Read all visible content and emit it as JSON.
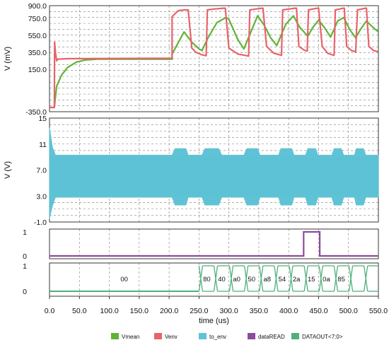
{
  "chart_data": [
    {
      "type": "line",
      "panel": "analog-voltage",
      "ylabel": "V (mV)",
      "ylim": [
        -350,
        900
      ],
      "yticks": [
        "900.0",
        "750.0",
        "550.0",
        "350.0",
        "150.0",
        "-350.0"
      ],
      "series": [
        {
          "name": "Vmean",
          "color": "#5fb336",
          "points": [
            [
              0,
              -300
            ],
            [
              8,
              -300
            ],
            [
              12,
              -50
            ],
            [
              20,
              80
            ],
            [
              30,
              170
            ],
            [
              45,
              235
            ],
            [
              60,
              260
            ],
            [
              80,
              270
            ],
            [
              205,
              270
            ],
            [
              205,
              330
            ],
            [
              215,
              460
            ],
            [
              225,
              590
            ],
            [
              238,
              470
            ],
            [
              250,
              390
            ],
            [
              255,
              370
            ],
            [
              265,
              520
            ],
            [
              280,
              700
            ],
            [
              295,
              760
            ],
            [
              300,
              740
            ],
            [
              315,
              500
            ],
            [
              325,
              390
            ],
            [
              335,
              560
            ],
            [
              348,
              780
            ],
            [
              358,
              680
            ],
            [
              370,
              520
            ],
            [
              380,
              430
            ],
            [
              395,
              680
            ],
            [
              408,
              780
            ],
            [
              418,
              650
            ],
            [
              432,
              540
            ],
            [
              440,
              640
            ],
            [
              450,
              730
            ],
            [
              460,
              640
            ],
            [
              470,
              530
            ],
            [
              482,
              720
            ],
            [
              492,
              760
            ],
            [
              502,
              620
            ],
            [
              512,
              520
            ],
            [
              520,
              620
            ],
            [
              530,
              720
            ],
            [
              540,
              650
            ],
            [
              550,
              590
            ]
          ]
        },
        {
          "name": "Venv",
          "color": "#e8636a",
          "points": [
            [
              0,
              -300
            ],
            [
              8,
              -300
            ],
            [
              8.5,
              470
            ],
            [
              10,
              340
            ],
            [
              12,
              250
            ],
            [
              14,
              270
            ],
            [
              30,
              275
            ],
            [
              205,
              280
            ],
            [
              205,
              770
            ],
            [
              215,
              840
            ],
            [
              225,
              850
            ],
            [
              232,
              850
            ],
            [
              238,
              400
            ],
            [
              245,
              350
            ],
            [
              255,
              320
            ],
            [
              262,
              310
            ],
            [
              264,
              850
            ],
            [
              275,
              860
            ],
            [
              290,
              870
            ],
            [
              294,
              870
            ],
            [
              300,
              400
            ],
            [
              315,
              330
            ],
            [
              330,
              310
            ],
            [
              333,
              305
            ],
            [
              335,
              850
            ],
            [
              345,
              860
            ],
            [
              355,
              870
            ],
            [
              357,
              870
            ],
            [
              363,
              420
            ],
            [
              375,
              340
            ],
            [
              385,
              320
            ],
            [
              388,
              315
            ],
            [
              390,
              850
            ],
            [
              400,
              860
            ],
            [
              410,
              870
            ],
            [
              413,
              870
            ],
            [
              417,
              420
            ],
            [
              425,
              380
            ],
            [
              428,
              370
            ],
            [
              431,
              365
            ],
            [
              433,
              850
            ],
            [
              440,
              860
            ],
            [
              448,
              870
            ],
            [
              450,
              870
            ],
            [
              456,
              420
            ],
            [
              465,
              340
            ],
            [
              473,
              320
            ],
            [
              476,
              315
            ],
            [
              478,
              850
            ],
            [
              485,
              860
            ],
            [
              491,
              870
            ],
            [
              493,
              870
            ],
            [
              497,
              420
            ],
            [
              505,
              370
            ],
            [
              510,
              360
            ],
            [
              512,
              355
            ],
            [
              515,
              850
            ],
            [
              522,
              860
            ],
            [
              528,
              870
            ],
            [
              530,
              870
            ],
            [
              534,
              420
            ],
            [
              542,
              370
            ],
            [
              548,
              360
            ],
            [
              550,
              355
            ]
          ]
        }
      ]
    },
    {
      "type": "area",
      "panel": "to-env",
      "ylabel": "V (V)",
      "ylim": [
        -1.0,
        15
      ],
      "yticks": [
        "15",
        "11",
        "7.0",
        "3.0",
        "-1.0"
      ],
      "series": [
        {
          "name": "to_env",
          "color": "#5ec3d5",
          "upper": [
            [
              0,
              13.5
            ],
            [
              5,
              10.5
            ],
            [
              10,
              9.3
            ],
            [
              205,
              9.3
            ],
            [
              210,
              10.3
            ],
            [
              228,
              10.3
            ],
            [
              232,
              9.3
            ],
            [
              255,
              9.3
            ],
            [
              260,
              10.3
            ],
            [
              283,
              10.3
            ],
            [
              288,
              9.3
            ],
            [
              325,
              9.3
            ],
            [
              330,
              10.3
            ],
            [
              348,
              10.3
            ],
            [
              352,
              9.3
            ],
            [
              383,
              9.3
            ],
            [
              387,
              10.3
            ],
            [
              405,
              10.3
            ],
            [
              409,
              9.3
            ],
            [
              428,
              9.3
            ],
            [
              432,
              10.3
            ],
            [
              445,
              10.3
            ],
            [
              449,
              9.3
            ],
            [
              472,
              9.3
            ],
            [
              476,
              10.3
            ],
            [
              488,
              10.3
            ],
            [
              492,
              9.3
            ],
            [
              510,
              9.3
            ],
            [
              513,
              10.3
            ],
            [
              525,
              10.3
            ],
            [
              529,
              9.3
            ],
            [
              550,
              9.3
            ]
          ],
          "lower": [
            [
              0,
              -0.5
            ],
            [
              5,
              1.5
            ],
            [
              10,
              2.8
            ],
            [
              205,
              2.8
            ],
            [
              210,
              1.6
            ],
            [
              228,
              1.6
            ],
            [
              232,
              2.8
            ],
            [
              255,
              2.8
            ],
            [
              260,
              1.6
            ],
            [
              283,
              1.6
            ],
            [
              288,
              2.8
            ],
            [
              325,
              2.8
            ],
            [
              330,
              1.6
            ],
            [
              348,
              1.6
            ],
            [
              352,
              2.8
            ],
            [
              383,
              2.8
            ],
            [
              387,
              1.6
            ],
            [
              405,
              1.6
            ],
            [
              409,
              2.8
            ],
            [
              428,
              2.8
            ],
            [
              432,
              1.6
            ],
            [
              445,
              1.6
            ],
            [
              449,
              2.8
            ],
            [
              472,
              2.8
            ],
            [
              476,
              1.6
            ],
            [
              488,
              1.6
            ],
            [
              492,
              2.8
            ],
            [
              510,
              2.8
            ],
            [
              513,
              1.6
            ],
            [
              525,
              1.6
            ],
            [
              529,
              2.8
            ],
            [
              550,
              2.8
            ]
          ]
        }
      ]
    },
    {
      "type": "line",
      "panel": "data-read",
      "ylim": [
        0,
        1
      ],
      "yticks": [
        "1",
        "0"
      ],
      "series": [
        {
          "name": "dataREAD",
          "color": "#8e4a9d",
          "points": [
            [
              0,
              0
            ],
            [
              425,
              0
            ],
            [
              425,
              1
            ],
            [
              452,
              1
            ],
            [
              452,
              0
            ],
            [
              550,
              0
            ]
          ]
        }
      ]
    },
    {
      "type": "bus",
      "panel": "data-out",
      "ylim": [
        0,
        1
      ],
      "yticks": [
        "1",
        "0"
      ],
      "series": [
        {
          "name": "DATAOUT<7:0>",
          "color": "#4fb07a",
          "transitions": [
            250,
            275,
            301,
            326,
            351,
            376,
            401,
            426,
            451,
            476,
            501,
            526
          ],
          "values": [
            "00",
            "80",
            "40",
            "a0",
            "50",
            "a8",
            "54",
            "2a",
            "15",
            "0a",
            "85",
            ""
          ],
          "value_positions": [
            125,
            263,
            288,
            313,
            338,
            364,
            389,
            413,
            438,
            463,
            488
          ]
        }
      ]
    }
  ],
  "xaxis": {
    "label": "time (us)",
    "xlim": [
      0,
      550
    ],
    "ticks": [
      "0.0",
      "50.0",
      "100.0",
      "150.0",
      "200.0",
      "250.0",
      "300.0",
      "350.0",
      "400.0",
      "450.0",
      "500.0",
      "550.0"
    ]
  },
  "legend": {
    "placement": "bottom",
    "items": [
      {
        "name": "Vmean",
        "color": "#5fb336"
      },
      {
        "name": "Venv",
        "color": "#e8636a"
      },
      {
        "name": "to_env",
        "color": "#5ec3d5"
      },
      {
        "name": "dataREAD",
        "color": "#8e4a9d"
      },
      {
        "name": "DATAOUT<7:0>",
        "color": "#4fb07a"
      }
    ]
  }
}
